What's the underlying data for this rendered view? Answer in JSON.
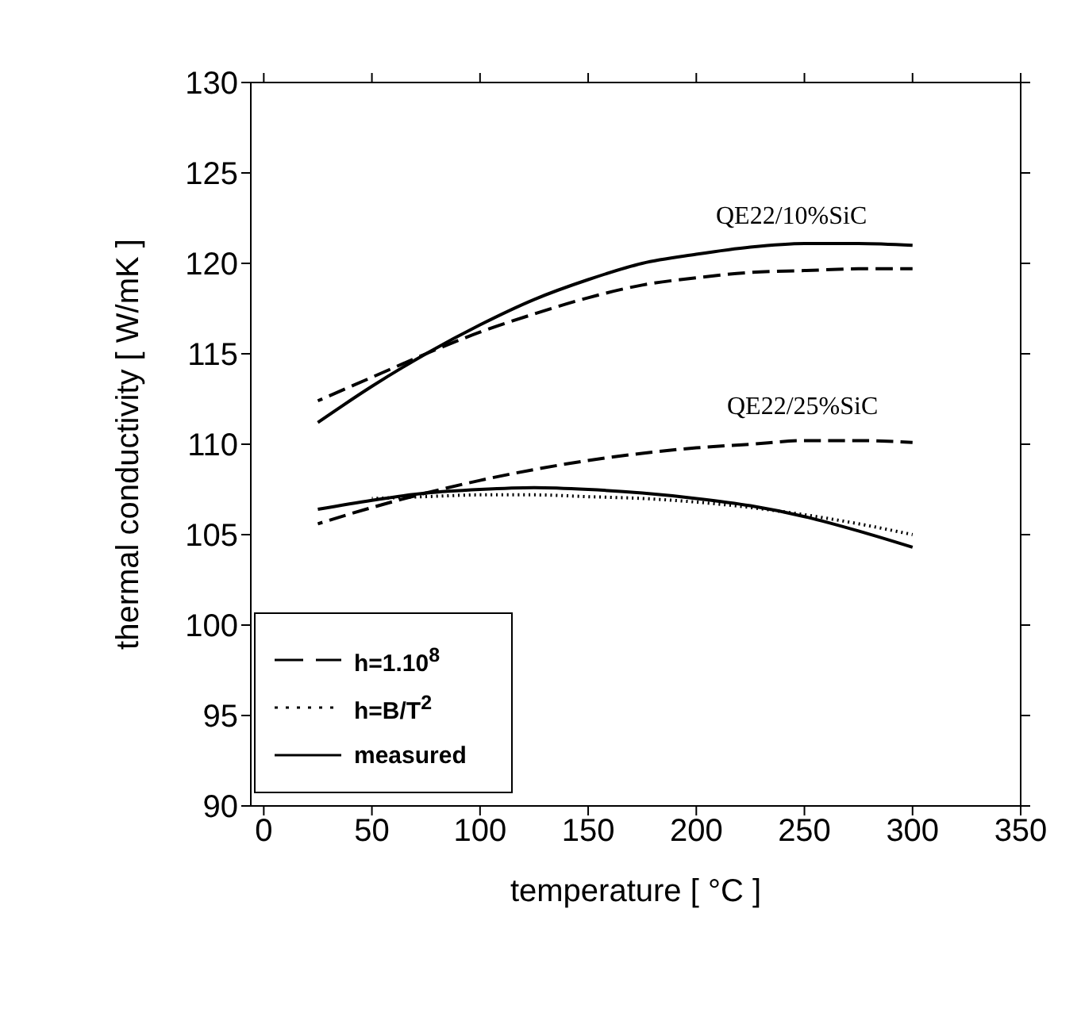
{
  "chart_data": {
    "type": "line",
    "xlabel": "temperature [ °C ]",
    "ylabel": "thermal conductivity  [ W/mK ]",
    "xlim": [
      -6,
      350
    ],
    "ylim": [
      90,
      130
    ],
    "xticks": [
      0,
      50,
      100,
      150,
      200,
      250,
      300,
      350
    ],
    "yticks": [
      90,
      95,
      100,
      105,
      110,
      115,
      120,
      125,
      130
    ],
    "legend": "bottom left",
    "marker": "none",
    "annotations": [
      "QE22/10%SiC",
      "QE22/25%SiC"
    ],
    "series": [
      {
        "name": "h=1.10$^{8}$",
        "color": "#000000",
        "line_style": "dashed",
        "x": [
          25,
          50,
          75,
          100,
          125,
          150,
          175,
          200,
          225,
          250,
          275,
          300
        ],
        "values": [
          112.4,
          113.7,
          115,
          116.2,
          117.2,
          118.1,
          118.8,
          119.2,
          119.5,
          119.6,
          119.7,
          119.7
        ]
      },
      {
        "name": "h=B/T$^{2}$",
        "color": "#000000",
        "line_style": "dotted",
        "x": [
          50,
          75,
          100,
          125,
          150,
          175,
          200,
          225,
          250,
          275,
          300
        ],
        "values": [
          107.0,
          107.1,
          107.2,
          107.2,
          107.1,
          107.0,
          106.8,
          106.5,
          106.1,
          105.6,
          105.0
        ]
      },
      {
        "name": "measured",
        "color": "#000000",
        "line_style": "solid",
        "x": [
          25,
          50,
          75,
          100,
          125,
          150,
          175,
          200,
          225,
          250,
          275,
          300
        ],
        "values": [
          111.2,
          113.2,
          115,
          116.6,
          118,
          119.1,
          120,
          120.5,
          120.9,
          121.1,
          121.1,
          121.0
        ]
      },
      {
        "color": "#000000",
        "line_style": "dashed",
        "x": [
          25,
          50,
          75,
          100,
          125,
          150,
          175,
          200,
          225,
          250,
          275,
          300
        ],
        "values": [
          105.6,
          106.5,
          107.3,
          108,
          108.6,
          109.1,
          109.5,
          109.8,
          110,
          110.2,
          110.2,
          110.1
        ]
      },
      {
        "color": "#000000",
        "line_style": "solid",
        "x": [
          25,
          50,
          75,
          100,
          125,
          150,
          175,
          200,
          225,
          250,
          275,
          300
        ],
        "values": [
          106.4,
          106.9,
          107.3,
          107.5,
          107.6,
          107.5,
          107.3,
          107,
          106.6,
          106,
          105.2,
          104.3
        ]
      }
    ]
  }
}
